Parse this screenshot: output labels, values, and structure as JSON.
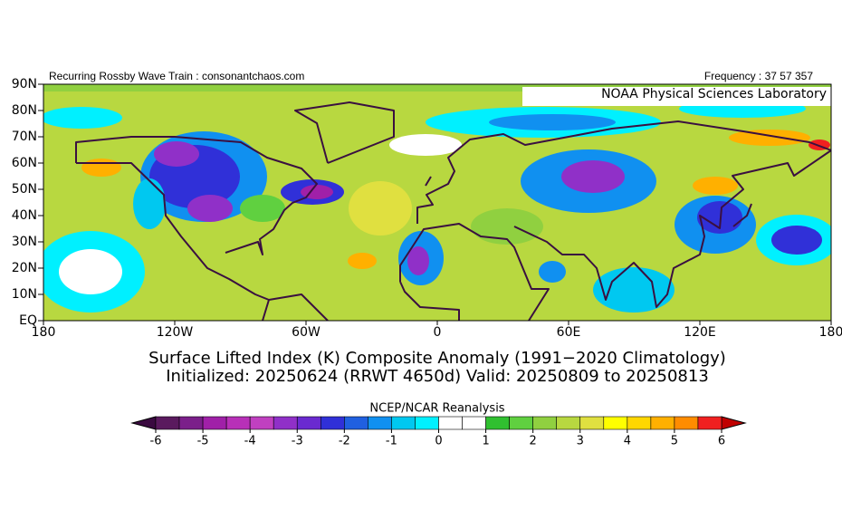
{
  "header": {
    "left": "Recurring Rossby Wave Train : consonantchaos.com",
    "right": "Frequency : 37 57 357",
    "lab": "NOAA Physical Sciences Laboratory"
  },
  "map": {
    "lat_labels": [
      "90N",
      "80N",
      "70N",
      "60N",
      "50N",
      "40N",
      "30N",
      "20N",
      "10N",
      "EQ"
    ],
    "lon_labels": [
      "180",
      "120W",
      "60W",
      "0",
      "60E",
      "120E",
      "180"
    ]
  },
  "caption": {
    "line1": "Surface Lifted Index (K) Composite Anomaly (1991−2020 Climatology)",
    "line2": "Initialized: 20250624 (RRWT 4650d) Valid: 20250809 to 20250813"
  },
  "colorbar": {
    "title": "NCEP/NCAR Reanalysis",
    "range": [
      -6,
      6
    ],
    "ticks": [
      -6,
      -5,
      -4,
      -3,
      -2,
      -1,
      0,
      1,
      2,
      3,
      4,
      5,
      6
    ],
    "under_color": "#3a0a40",
    "over_color": "#c00000",
    "colors": [
      "#5a1a5e",
      "#7b1f8a",
      "#a020a8",
      "#b830b8",
      "#c040c0",
      "#9030c8",
      "#6a2ad0",
      "#3030d8",
      "#2060e0",
      "#1090f0",
      "#00c8f0",
      "#00f0ff",
      "#ffffff",
      "#ffffff",
      "#30c030",
      "#60d040",
      "#90d040",
      "#b8d840",
      "#e0e040",
      "#ffff00",
      "#ffd700",
      "#ffb000",
      "#ff8c00",
      "#f02020"
    ]
  }
}
